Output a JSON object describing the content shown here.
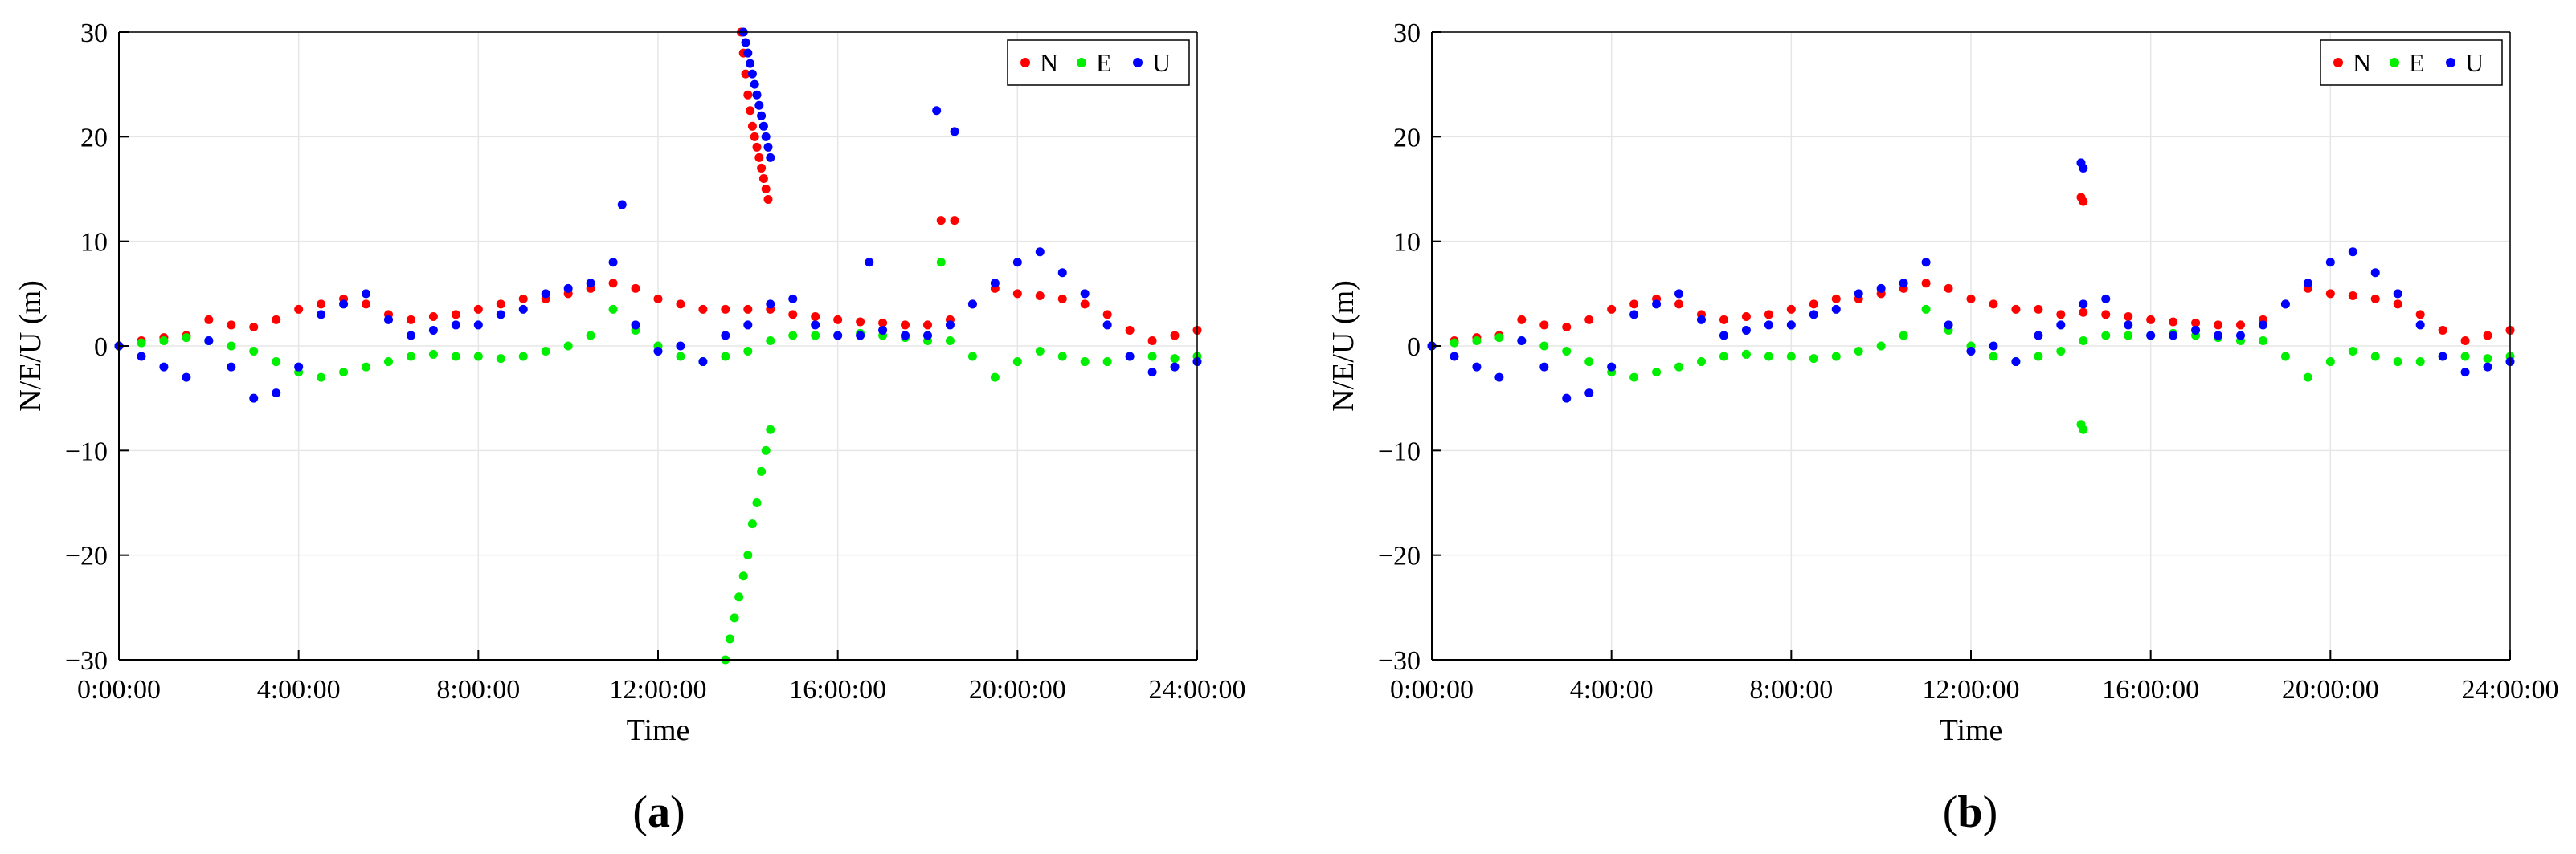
{
  "colors": {
    "N": "#ff0000",
    "E": "#00ee00",
    "U": "#0000ff",
    "grid": "#e6e6e6",
    "axis": "#000000"
  },
  "chart_data": [
    {
      "type": "scatter",
      "panel_id": "a",
      "caption": {
        "open": "(",
        "letter": "a",
        "close": ")"
      },
      "xlabel": "Time",
      "ylabel": "N/E/U (m)",
      "xlim": [
        0,
        24
      ],
      "ylim": [
        -30,
        30
      ],
      "xticks": [
        0,
        4,
        8,
        12,
        16,
        20,
        24
      ],
      "xtick_labels": [
        "0:00:00",
        "4:00:00",
        "8:00:00",
        "12:00:00",
        "16:00:00",
        "20:00:00",
        "24:00:00"
      ],
      "yticks": [
        -30,
        -20,
        -10,
        0,
        10,
        20,
        30
      ],
      "ytick_labels": [
        "−30",
        "−20",
        "−10",
        "0",
        "10",
        "20",
        "30"
      ],
      "grid": true,
      "legend": {
        "placement": "top-right",
        "entries": [
          "N",
          "E",
          "U"
        ]
      },
      "series": [
        {
          "name": "N",
          "color_key": "N",
          "x": [
            0.0,
            0.5,
            1.0,
            1.5,
            2.0,
            2.5,
            3.0,
            3.5,
            4.0,
            4.5,
            5.0,
            5.5,
            6.0,
            6.5,
            7.0,
            7.5,
            8.0,
            8.5,
            9.0,
            9.5,
            10.0,
            10.5,
            11.0,
            11.5,
            12.0,
            12.5,
            13.0,
            13.5,
            14.0,
            14.5,
            15.0,
            15.5,
            16.0,
            16.5,
            17.0,
            17.5,
            18.0,
            18.5,
            19.0,
            19.5,
            20.0,
            20.5,
            21.0,
            21.5,
            22.0,
            22.5,
            23.0,
            23.5,
            24.0
          ],
          "y": [
            0.0,
            0.5,
            0.8,
            1.0,
            2.5,
            2.0,
            1.8,
            2.5,
            3.5,
            4.0,
            4.5,
            4.0,
            3.0,
            2.5,
            2.8,
            3.0,
            3.5,
            4.0,
            4.5,
            4.5,
            5.0,
            5.5,
            6.0,
            5.5,
            4.5,
            4.0,
            3.5,
            3.5,
            3.5,
            3.5,
            3.0,
            2.8,
            2.5,
            2.3,
            2.2,
            2.0,
            2.0,
            2.5,
            4.0,
            5.5,
            5.0,
            4.8,
            4.5,
            4.0,
            3.0,
            1.5,
            0.5,
            1.0,
            1.5
          ]
        },
        {
          "name": "E",
          "color_key": "E",
          "x": [
            0.0,
            0.5,
            1.0,
            1.5,
            2.0,
            2.5,
            3.0,
            3.5,
            4.0,
            4.5,
            5.0,
            5.5,
            6.0,
            6.5,
            7.0,
            7.5,
            8.0,
            8.5,
            9.0,
            9.5,
            10.0,
            10.5,
            11.0,
            11.5,
            12.0,
            12.5,
            13.0,
            13.5,
            14.0,
            14.5,
            15.0,
            15.5,
            16.0,
            16.5,
            17.0,
            17.5,
            18.0,
            18.5,
            19.0,
            19.5,
            20.0,
            20.5,
            21.0,
            21.5,
            22.0,
            22.5,
            23.0,
            23.5,
            24.0
          ],
          "y": [
            0.0,
            0.3,
            0.5,
            0.8,
            0.5,
            0.0,
            -0.5,
            -1.5,
            -2.5,
            -3.0,
            -2.5,
            -2.0,
            -1.5,
            -1.0,
            -0.8,
            -1.0,
            -1.0,
            -1.2,
            -1.0,
            -0.5,
            0.0,
            1.0,
            3.5,
            1.5,
            0.0,
            -1.0,
            -1.5,
            -1.0,
            -0.5,
            0.5,
            1.0,
            1.0,
            1.0,
            1.2,
            1.0,
            0.8,
            0.5,
            0.5,
            -1.0,
            -3.0,
            -1.5,
            -0.5,
            -1.0,
            -1.5,
            -1.5,
            -1.0,
            -1.0,
            -1.2,
            -1.0
          ]
        },
        {
          "name": "U",
          "color_key": "U",
          "x": [
            0.0,
            0.5,
            1.0,
            1.5,
            2.0,
            2.5,
            3.0,
            3.5,
            4.0,
            4.5,
            5.0,
            5.5,
            6.0,
            6.5,
            7.0,
            7.5,
            8.0,
            8.5,
            9.0,
            9.5,
            10.0,
            10.5,
            11.0,
            11.5,
            12.0,
            12.5,
            13.0,
            13.5,
            14.0,
            14.5,
            15.0,
            15.5,
            16.0,
            16.5,
            17.0,
            17.5,
            18.0,
            18.5,
            19.0,
            19.5,
            20.0,
            20.5,
            21.0,
            21.5,
            22.0,
            22.5,
            23.0,
            23.5,
            24.0
          ],
          "y": [
            0.0,
            -1.0,
            -2.0,
            -3.0,
            0.5,
            -2.0,
            -5.0,
            -4.5,
            -2.0,
            3.0,
            4.0,
            5.0,
            2.5,
            1.0,
            1.5,
            2.0,
            2.0,
            3.0,
            3.5,
            5.0,
            5.5,
            6.0,
            8.0,
            2.0,
            -0.5,
            0.0,
            -1.5,
            1.0,
            2.0,
            4.0,
            4.5,
            2.0,
            1.0,
            1.0,
            1.5,
            1.0,
            1.0,
            2.0,
            4.0,
            6.0,
            8.0,
            9.0,
            7.0,
            5.0,
            2.0,
            -1.0,
            -2.5,
            -2.0,
            -1.5
          ]
        },
        {
          "name": "N",
          "color_key": "N",
          "x": [
            13.85,
            13.9,
            13.95,
            14.0,
            14.05,
            14.1,
            14.15,
            14.2,
            14.25,
            14.3,
            14.35,
            14.4,
            14.45
          ],
          "y": [
            30,
            28,
            26,
            24,
            22.5,
            21,
            20,
            19,
            18,
            17,
            16,
            15,
            14
          ]
        },
        {
          "name": "U",
          "color_key": "U",
          "x": [
            13.9,
            13.95,
            14.0,
            14.05,
            14.1,
            14.15,
            14.2,
            14.25,
            14.3,
            14.35,
            14.4,
            14.45,
            14.5
          ],
          "y": [
            30,
            29,
            28,
            27,
            26,
            25,
            24,
            23,
            22,
            21,
            20,
            19,
            18
          ]
        },
        {
          "name": "E",
          "color_key": "E",
          "x": [
            13.5,
            13.6,
            13.7,
            13.8,
            13.9,
            14.0,
            14.1,
            14.2,
            14.3,
            14.4,
            14.5
          ],
          "y": [
            -30,
            -28,
            -26,
            -24,
            -22,
            -20,
            -17,
            -15,
            -12,
            -10,
            -8
          ]
        },
        {
          "name": "U",
          "color_key": "U",
          "x": [
            18.2,
            18.6,
            16.7,
            11.2
          ],
          "y": [
            22.5,
            20.5,
            8.0,
            13.5
          ]
        },
        {
          "name": "N",
          "color_key": "N",
          "x": [
            18.3,
            18.6
          ],
          "y": [
            12.0,
            12.0
          ]
        },
        {
          "name": "E",
          "color_key": "E",
          "x": [
            18.3
          ],
          "y": [
            8.0
          ]
        }
      ]
    },
    {
      "type": "scatter",
      "panel_id": "b",
      "caption": {
        "open": "(",
        "letter": "b",
        "close": ")"
      },
      "xlabel": "Time",
      "ylabel": "N/E/U (m)",
      "xlim": [
        0,
        24
      ],
      "ylim": [
        -30,
        30
      ],
      "xticks": [
        0,
        4,
        8,
        12,
        16,
        20,
        24
      ],
      "xtick_labels": [
        "0:00:00",
        "4:00:00",
        "8:00:00",
        "12:00:00",
        "16:00:00",
        "20:00:00",
        "24:00:00"
      ],
      "yticks": [
        -30,
        -20,
        -10,
        0,
        10,
        20,
        30
      ],
      "ytick_labels": [
        "−30",
        "−20",
        "−10",
        "0",
        "10",
        "20",
        "30"
      ],
      "grid": true,
      "legend": {
        "placement": "top-right",
        "entries": [
          "N",
          "E",
          "U"
        ]
      },
      "series": [
        {
          "name": "N",
          "color_key": "N",
          "x": [
            0.0,
            0.5,
            1.0,
            1.5,
            2.0,
            2.5,
            3.0,
            3.5,
            4.0,
            4.5,
            5.0,
            5.5,
            6.0,
            6.5,
            7.0,
            7.5,
            8.0,
            8.5,
            9.0,
            9.5,
            10.0,
            10.5,
            11.0,
            11.5,
            12.0,
            12.5,
            13.0,
            13.5,
            14.0,
            14.5,
            15.0,
            15.5,
            16.0,
            16.5,
            17.0,
            17.5,
            18.0,
            18.5,
            19.0,
            19.5,
            20.0,
            20.5,
            21.0,
            21.5,
            22.0,
            22.5,
            23.0,
            23.5,
            24.0
          ],
          "y": [
            0.0,
            0.5,
            0.8,
            1.0,
            2.5,
            2.0,
            1.8,
            2.5,
            3.5,
            4.0,
            4.5,
            4.0,
            3.0,
            2.5,
            2.8,
            3.0,
            3.5,
            4.0,
            4.5,
            4.5,
            5.0,
            5.5,
            6.0,
            5.5,
            4.5,
            4.0,
            3.5,
            3.5,
            3.0,
            3.2,
            3.0,
            2.8,
            2.5,
            2.3,
            2.2,
            2.0,
            2.0,
            2.5,
            4.0,
            5.5,
            5.0,
            4.8,
            4.5,
            4.0,
            3.0,
            1.5,
            0.5,
            1.0,
            1.5
          ]
        },
        {
          "name": "E",
          "color_key": "E",
          "x": [
            0.0,
            0.5,
            1.0,
            1.5,
            2.0,
            2.5,
            3.0,
            3.5,
            4.0,
            4.5,
            5.0,
            5.5,
            6.0,
            6.5,
            7.0,
            7.5,
            8.0,
            8.5,
            9.0,
            9.5,
            10.0,
            10.5,
            11.0,
            11.5,
            12.0,
            12.5,
            13.0,
            13.5,
            14.0,
            14.5,
            15.0,
            15.5,
            16.0,
            16.5,
            17.0,
            17.5,
            18.0,
            18.5,
            19.0,
            19.5,
            20.0,
            20.5,
            21.0,
            21.5,
            22.0,
            22.5,
            23.0,
            23.5,
            24.0
          ],
          "y": [
            0.0,
            0.3,
            0.5,
            0.8,
            0.5,
            0.0,
            -0.5,
            -1.5,
            -2.5,
            -3.0,
            -2.5,
            -2.0,
            -1.5,
            -1.0,
            -0.8,
            -1.0,
            -1.0,
            -1.2,
            -1.0,
            -0.5,
            0.0,
            1.0,
            3.5,
            1.5,
            0.0,
            -1.0,
            -1.5,
            -1.0,
            -0.5,
            0.5,
            1.0,
            1.0,
            1.0,
            1.2,
            1.0,
            0.8,
            0.5,
            0.5,
            -1.0,
            -3.0,
            -1.5,
            -0.5,
            -1.0,
            -1.5,
            -1.5,
            -1.0,
            -1.0,
            -1.2,
            -1.0
          ]
        },
        {
          "name": "U",
          "color_key": "U",
          "x": [
            0.0,
            0.5,
            1.0,
            1.5,
            2.0,
            2.5,
            3.0,
            3.5,
            4.0,
            4.5,
            5.0,
            5.5,
            6.0,
            6.5,
            7.0,
            7.5,
            8.0,
            8.5,
            9.0,
            9.5,
            10.0,
            10.5,
            11.0,
            11.5,
            12.0,
            12.5,
            13.0,
            13.5,
            14.0,
            14.5,
            15.0,
            15.5,
            16.0,
            16.5,
            17.0,
            17.5,
            18.0,
            18.5,
            19.0,
            19.5,
            20.0,
            20.5,
            21.0,
            21.5,
            22.0,
            22.5,
            23.0,
            23.5,
            24.0
          ],
          "y": [
            0.0,
            -1.0,
            -2.0,
            -3.0,
            0.5,
            -2.0,
            -5.0,
            -4.5,
            -2.0,
            3.0,
            4.0,
            5.0,
            2.5,
            1.0,
            1.5,
            2.0,
            2.0,
            3.0,
            3.5,
            5.0,
            5.5,
            6.0,
            8.0,
            2.0,
            -0.5,
            0.0,
            -1.5,
            1.0,
            2.0,
            4.0,
            4.5,
            2.0,
            1.0,
            1.0,
            1.5,
            1.0,
            1.0,
            2.0,
            4.0,
            6.0,
            8.0,
            9.0,
            7.0,
            5.0,
            2.0,
            -1.0,
            -2.5,
            -2.0,
            -1.5
          ]
        },
        {
          "name": "U",
          "color_key": "U",
          "x": [
            14.45,
            14.5
          ],
          "y": [
            17.5,
            17.0
          ]
        },
        {
          "name": "N",
          "color_key": "N",
          "x": [
            14.45,
            14.5
          ],
          "y": [
            14.2,
            13.8
          ]
        },
        {
          "name": "E",
          "color_key": "E",
          "x": [
            14.45,
            14.5
          ],
          "y": [
            -7.5,
            -8.0
          ]
        }
      ]
    }
  ]
}
